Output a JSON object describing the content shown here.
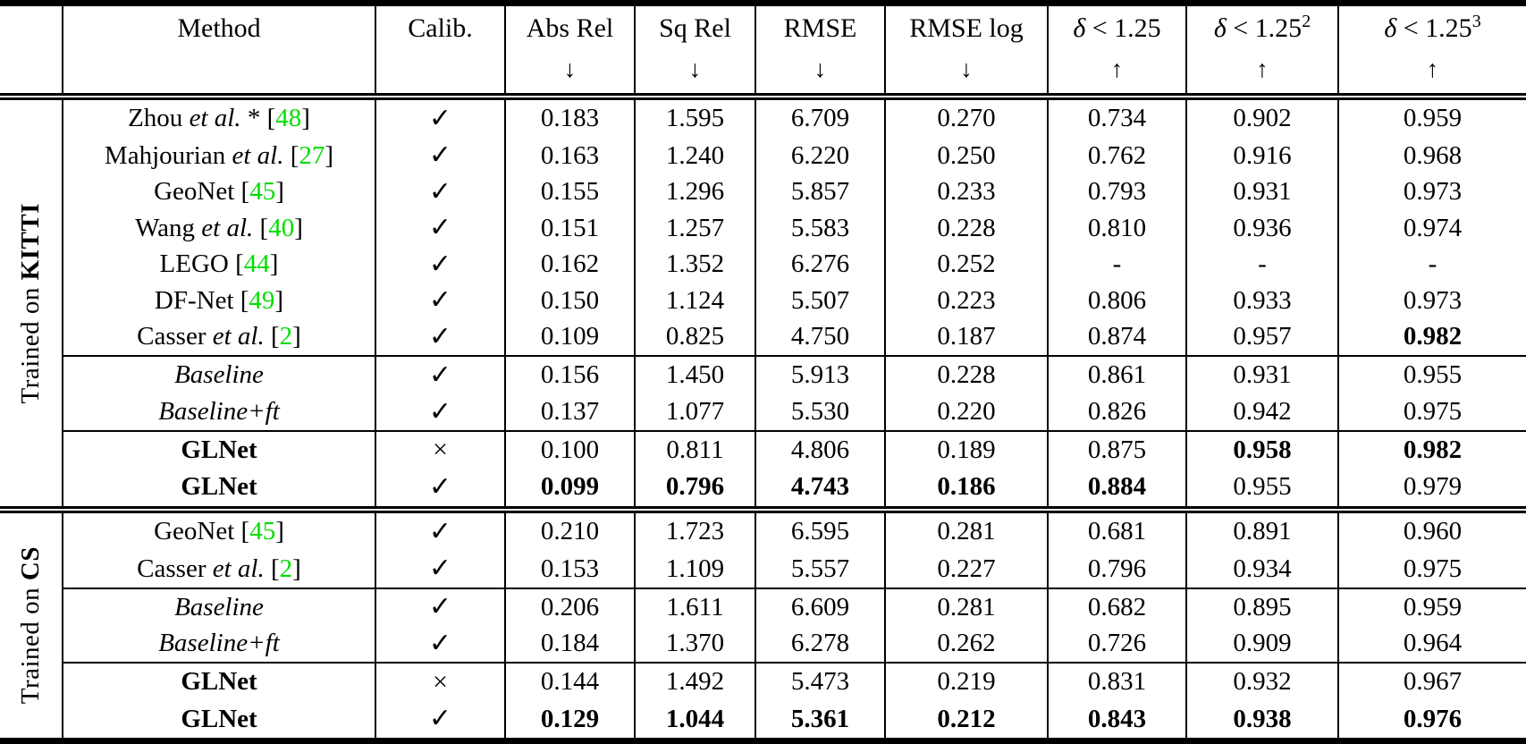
{
  "colors": {
    "citation_green": "#00dd00",
    "text_black": "#000000",
    "background": "#ffffff"
  },
  "header": {
    "columns": [
      {
        "key": "method",
        "sym": "",
        "label": "Method",
        "sup": "",
        "arrow": ""
      },
      {
        "key": "calib",
        "sym": "",
        "label": "Calib.",
        "sup": "",
        "arrow": ""
      },
      {
        "key": "abs-rel",
        "sym": "",
        "label": "Abs Rel",
        "sup": "",
        "arrow": "↓"
      },
      {
        "key": "sq-rel",
        "sym": "",
        "label": "Sq Rel",
        "sup": "",
        "arrow": "↓"
      },
      {
        "key": "rmse",
        "sym": "",
        "label": "RMSE",
        "sup": "",
        "arrow": "↓"
      },
      {
        "key": "rmse-log",
        "sym": "",
        "label": "RMSE log",
        "sup": "",
        "arrow": "↓"
      },
      {
        "key": "delta-1",
        "sym": "δ",
        "label": " < 1.25",
        "sup": "",
        "arrow": "↑"
      },
      {
        "key": "delta-2",
        "sym": "δ",
        "label": " < 1.25",
        "sup": "2",
        "arrow": "↑"
      },
      {
        "key": "delta-3",
        "sym": "δ",
        "label": " < 1.25",
        "sup": "3",
        "arrow": "↑"
      }
    ]
  },
  "sections": [
    {
      "group": {
        "prefix": "Trained on ",
        "dataset": "KITTI"
      },
      "rows": [
        {
          "method": [
            {
              "t": "Zhou ",
              "s": "n"
            },
            {
              "t": "et al.",
              "s": "i"
            },
            {
              "t": " *  [",
              "s": "n"
            },
            {
              "t": "48",
              "s": "g"
            },
            {
              "t": "]",
              "s": "n"
            }
          ],
          "calib": "✓",
          "values": [
            "0.183",
            "1.595",
            "6.709",
            "0.270",
            "0.734",
            "0.902",
            "0.959"
          ],
          "bold": [
            false,
            false,
            false,
            false,
            false,
            false,
            false
          ],
          "divider_after": false
        },
        {
          "method": [
            {
              "t": "Mahjourian ",
              "s": "n"
            },
            {
              "t": "et al.",
              "s": "i"
            },
            {
              "t": " [",
              "s": "n"
            },
            {
              "t": "27",
              "s": "g"
            },
            {
              "t": "]",
              "s": "n"
            }
          ],
          "calib": "✓",
          "values": [
            "0.163",
            "1.240",
            "6.220",
            "0.250",
            "0.762",
            "0.916",
            "0.968"
          ],
          "bold": [
            false,
            false,
            false,
            false,
            false,
            false,
            false
          ],
          "divider_after": false
        },
        {
          "method": [
            {
              "t": "GeoNet [",
              "s": "n"
            },
            {
              "t": "45",
              "s": "g"
            },
            {
              "t": "]",
              "s": "n"
            }
          ],
          "calib": "✓",
          "values": [
            "0.155",
            "1.296",
            "5.857",
            "0.233",
            "0.793",
            "0.931",
            "0.973"
          ],
          "bold": [
            false,
            false,
            false,
            false,
            false,
            false,
            false
          ],
          "divider_after": false
        },
        {
          "method": [
            {
              "t": "Wang ",
              "s": "n"
            },
            {
              "t": "et al.",
              "s": "i"
            },
            {
              "t": " [",
              "s": "n"
            },
            {
              "t": "40",
              "s": "g"
            },
            {
              "t": "]",
              "s": "n"
            }
          ],
          "calib": "✓",
          "values": [
            "0.151",
            "1.257",
            "5.583",
            "0.228",
            "0.810",
            "0.936",
            "0.974"
          ],
          "bold": [
            false,
            false,
            false,
            false,
            false,
            false,
            false
          ],
          "divider_after": false
        },
        {
          "method": [
            {
              "t": "LEGO [",
              "s": "n"
            },
            {
              "t": "44",
              "s": "g"
            },
            {
              "t": "]",
              "s": "n"
            }
          ],
          "calib": "✓",
          "values": [
            "0.162",
            "1.352",
            "6.276",
            "0.252",
            "-",
            "-",
            "-"
          ],
          "bold": [
            false,
            false,
            false,
            false,
            false,
            false,
            false
          ],
          "divider_after": false
        },
        {
          "method": [
            {
              "t": "DF-Net [",
              "s": "n"
            },
            {
              "t": "49",
              "s": "g"
            },
            {
              "t": "]",
              "s": "n"
            }
          ],
          "calib": "✓",
          "values": [
            "0.150",
            "1.124",
            "5.507",
            "0.223",
            "0.806",
            "0.933",
            "0.973"
          ],
          "bold": [
            false,
            false,
            false,
            false,
            false,
            false,
            false
          ],
          "divider_after": false
        },
        {
          "method": [
            {
              "t": "Casser ",
              "s": "n"
            },
            {
              "t": "et al.",
              "s": "i"
            },
            {
              "t": " [",
              "s": "n"
            },
            {
              "t": "2",
              "s": "g"
            },
            {
              "t": "]",
              "s": "n"
            }
          ],
          "calib": "✓",
          "values": [
            "0.109",
            "0.825",
            "4.750",
            "0.187",
            "0.874",
            "0.957",
            "0.982"
          ],
          "bold": [
            false,
            false,
            false,
            false,
            false,
            false,
            true
          ],
          "divider_after": true
        },
        {
          "method": [
            {
              "t": "Baseline",
              "s": "i"
            }
          ],
          "calib": "✓",
          "values": [
            "0.156",
            "1.450",
            "5.913",
            "0.228",
            "0.861",
            "0.931",
            "0.955"
          ],
          "bold": [
            false,
            false,
            false,
            false,
            false,
            false,
            false
          ],
          "divider_after": false
        },
        {
          "method": [
            {
              "t": "Baseline+ft",
              "s": "i"
            }
          ],
          "calib": "✓",
          "values": [
            "0.137",
            "1.077",
            "5.530",
            "0.220",
            "0.826",
            "0.942",
            "0.975"
          ],
          "bold": [
            false,
            false,
            false,
            false,
            false,
            false,
            false
          ],
          "divider_after": true
        },
        {
          "method": [
            {
              "t": "GLNet",
              "s": "b"
            }
          ],
          "calib": "×",
          "values": [
            "0.100",
            "0.811",
            "4.806",
            "0.189",
            "0.875",
            "0.958",
            "0.982"
          ],
          "bold": [
            false,
            false,
            false,
            false,
            false,
            true,
            true
          ],
          "divider_after": false
        },
        {
          "method": [
            {
              "t": "GLNet",
              "s": "b"
            }
          ],
          "calib": "✓",
          "values": [
            "0.099",
            "0.796",
            "4.743",
            "0.186",
            "0.884",
            "0.955",
            "0.979"
          ],
          "bold": [
            true,
            true,
            true,
            true,
            true,
            false,
            false
          ],
          "divider_after": false
        }
      ]
    },
    {
      "group": {
        "prefix": "Trained on ",
        "dataset": "CS"
      },
      "rows": [
        {
          "method": [
            {
              "t": "GeoNet [",
              "s": "n"
            },
            {
              "t": "45",
              "s": "g"
            },
            {
              "t": "]",
              "s": "n"
            }
          ],
          "calib": "✓",
          "values": [
            "0.210",
            "1.723",
            "6.595",
            "0.281",
            "0.681",
            "0.891",
            "0.960"
          ],
          "bold": [
            false,
            false,
            false,
            false,
            false,
            false,
            false
          ],
          "divider_after": false
        },
        {
          "method": [
            {
              "t": "Casser ",
              "s": "n"
            },
            {
              "t": "et al.",
              "s": "i"
            },
            {
              "t": " [",
              "s": "n"
            },
            {
              "t": "2",
              "s": "g"
            },
            {
              "t": "]",
              "s": "n"
            }
          ],
          "calib": "✓",
          "values": [
            "0.153",
            "1.109",
            "5.557",
            "0.227",
            "0.796",
            "0.934",
            "0.975"
          ],
          "bold": [
            false,
            false,
            false,
            false,
            false,
            false,
            false
          ],
          "divider_after": true
        },
        {
          "method": [
            {
              "t": "Baseline",
              "s": "i"
            }
          ],
          "calib": "✓",
          "values": [
            "0.206",
            "1.611",
            "6.609",
            "0.281",
            "0.682",
            "0.895",
            "0.959"
          ],
          "bold": [
            false,
            false,
            false,
            false,
            false,
            false,
            false
          ],
          "divider_after": false
        },
        {
          "method": [
            {
              "t": "Baseline+ft",
              "s": "i"
            }
          ],
          "calib": "✓",
          "values": [
            "0.184",
            "1.370",
            "6.278",
            "0.262",
            "0.726",
            "0.909",
            "0.964"
          ],
          "bold": [
            false,
            false,
            false,
            false,
            false,
            false,
            false
          ],
          "divider_after": true
        },
        {
          "method": [
            {
              "t": "GLNet",
              "s": "b"
            }
          ],
          "calib": "×",
          "values": [
            "0.144",
            "1.492",
            "5.473",
            "0.219",
            "0.831",
            "0.932",
            "0.967"
          ],
          "bold": [
            false,
            false,
            false,
            false,
            false,
            false,
            false
          ],
          "divider_after": false
        },
        {
          "method": [
            {
              "t": "GLNet",
              "s": "b"
            }
          ],
          "calib": "✓",
          "values": [
            "0.129",
            "1.044",
            "5.361",
            "0.212",
            "0.843",
            "0.938",
            "0.976"
          ],
          "bold": [
            true,
            true,
            true,
            true,
            true,
            true,
            true
          ],
          "divider_after": false
        }
      ]
    }
  ]
}
